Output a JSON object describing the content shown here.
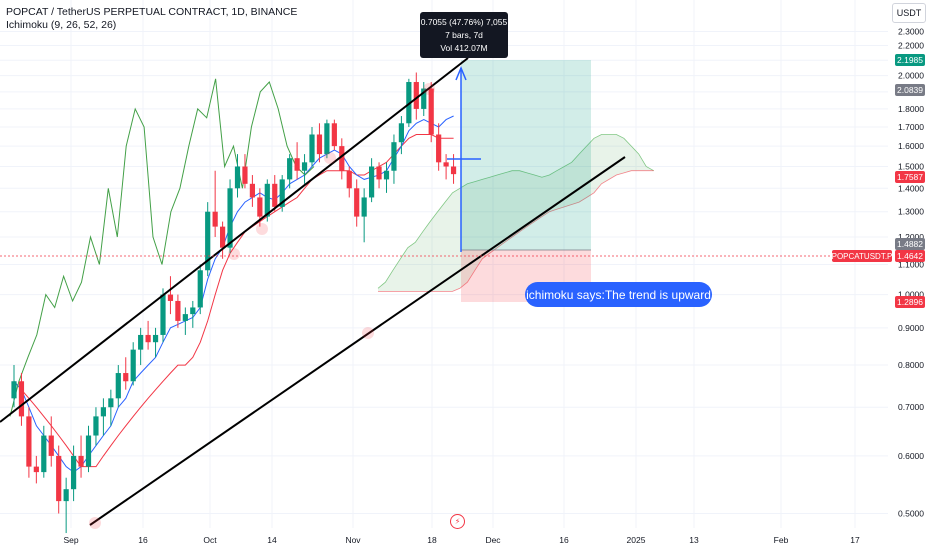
{
  "header": {
    "symbol_line": "POPCAT / TetherUS PERPETUAL CONTRACT, 1D, BINANCE",
    "indicator_line": "Ichimoku (9, 26, 52, 26)"
  },
  "currency": "USDT",
  "measure_box": {
    "line1": "0.7055 (47.76%) 7,055",
    "line2": "7 bars, 7d",
    "line3": "Vol 412.07M"
  },
  "callout": "ichimoku says:The trend is upward",
  "price_tags": [
    {
      "label": "2.1985",
      "color": "#089981"
    },
    {
      "label": "2.0839",
      "color": "#787b86"
    },
    {
      "label": "1.7587",
      "color": "#f23645"
    },
    {
      "label": "1.4882",
      "color": "#787b86"
    },
    {
      "label": "1.4642",
      "color": "#f23645"
    },
    {
      "label": "1.2896",
      "color": "#f23645"
    }
  ],
  "symbol_tag": "POPCATUSDT.P",
  "colors": {
    "up": "#089981",
    "down": "#f23645",
    "tenkan": "#2962ff",
    "kijun": "#f23645",
    "lagging": "#43a047",
    "accent": "#2962ff",
    "grid": "#f0f3fa"
  },
  "chart_data": {
    "type": "candlestick",
    "scale": "log",
    "ylim": [
      0.45,
      2.45
    ],
    "y_ticks": [
      "2.3000",
      "2.2000",
      "2.1000",
      "2.0000",
      "1.9000",
      "1.8000",
      "1.7000",
      "1.6000",
      "1.5000",
      "1.4000",
      "1.3000",
      "1.2000",
      "1.1000",
      "1.0000",
      "0.9000",
      "0.8000",
      "0.7000",
      "0.6000",
      "0.5000"
    ],
    "x_ticks": [
      "Sep",
      "16",
      "Oct",
      "14",
      "Nov",
      "18",
      "Dec",
      "16",
      "2025",
      "13",
      "Feb",
      "17"
    ],
    "candles": [
      [
        0.72,
        0.8,
        0.7,
        0.76
      ],
      [
        0.76,
        0.78,
        0.66,
        0.68
      ],
      [
        0.68,
        0.7,
        0.56,
        0.58
      ],
      [
        0.58,
        0.6,
        0.55,
        0.57
      ],
      [
        0.57,
        0.66,
        0.56,
        0.64
      ],
      [
        0.64,
        0.68,
        0.58,
        0.6
      ],
      [
        0.6,
        0.62,
        0.5,
        0.52
      ],
      [
        0.52,
        0.56,
        0.47,
        0.54
      ],
      [
        0.54,
        0.62,
        0.52,
        0.6
      ],
      [
        0.6,
        0.64,
        0.56,
        0.58
      ],
      [
        0.58,
        0.66,
        0.57,
        0.64
      ],
      [
        0.64,
        0.7,
        0.62,
        0.68
      ],
      [
        0.68,
        0.72,
        0.64,
        0.7
      ],
      [
        0.7,
        0.74,
        0.66,
        0.72
      ],
      [
        0.72,
        0.8,
        0.7,
        0.78
      ],
      [
        0.78,
        0.82,
        0.74,
        0.76
      ],
      [
        0.76,
        0.86,
        0.75,
        0.84
      ],
      [
        0.84,
        0.9,
        0.8,
        0.88
      ],
      [
        0.88,
        0.92,
        0.84,
        0.86
      ],
      [
        0.86,
        0.9,
        0.82,
        0.88
      ],
      [
        0.88,
        1.02,
        0.86,
        1.0
      ],
      [
        1.0,
        1.06,
        0.94,
        0.98
      ],
      [
        0.98,
        1.0,
        0.9,
        0.92
      ],
      [
        0.92,
        0.96,
        0.88,
        0.94
      ],
      [
        0.94,
        0.98,
        0.9,
        0.96
      ],
      [
        0.96,
        1.1,
        0.94,
        1.08
      ],
      [
        1.08,
        1.34,
        1.06,
        1.3
      ],
      [
        1.3,
        1.48,
        1.2,
        1.24
      ],
      [
        1.24,
        1.26,
        1.12,
        1.16
      ],
      [
        1.16,
        1.44,
        1.14,
        1.4
      ],
      [
        1.4,
        1.56,
        1.36,
        1.5
      ],
      [
        1.5,
        1.56,
        1.4,
        1.42
      ],
      [
        1.42,
        1.46,
        1.32,
        1.36
      ],
      [
        1.36,
        1.4,
        1.24,
        1.28
      ],
      [
        1.28,
        1.44,
        1.26,
        1.42
      ],
      [
        1.42,
        1.46,
        1.3,
        1.32
      ],
      [
        1.32,
        1.46,
        1.3,
        1.44
      ],
      [
        1.44,
        1.56,
        1.4,
        1.54
      ],
      [
        1.54,
        1.62,
        1.44,
        1.48
      ],
      [
        1.48,
        1.56,
        1.42,
        1.52
      ],
      [
        1.52,
        1.7,
        1.5,
        1.66
      ],
      [
        1.66,
        1.72,
        1.52,
        1.56
      ],
      [
        1.56,
        1.74,
        1.54,
        1.72
      ],
      [
        1.72,
        1.74,
        1.58,
        1.6
      ],
      [
        1.6,
        1.64,
        1.44,
        1.48
      ],
      [
        1.48,
        1.5,
        1.36,
        1.4
      ],
      [
        1.4,
        1.44,
        1.24,
        1.28
      ],
      [
        1.28,
        1.4,
        1.18,
        1.36
      ],
      [
        1.36,
        1.54,
        1.34,
        1.5
      ],
      [
        1.5,
        1.52,
        1.4,
        1.44
      ],
      [
        1.44,
        1.52,
        1.38,
        1.48
      ],
      [
        1.48,
        1.66,
        1.42,
        1.62
      ],
      [
        1.62,
        1.76,
        1.56,
        1.72
      ],
      [
        1.72,
        1.98,
        1.7,
        1.96
      ],
      [
        1.96,
        2.02,
        1.74,
        1.8
      ],
      [
        1.8,
        1.96,
        1.76,
        1.92
      ],
      [
        1.92,
        1.96,
        1.62,
        1.66
      ],
      [
        1.66,
        1.72,
        1.48,
        1.52
      ],
      [
        1.52,
        1.56,
        1.44,
        1.5
      ],
      [
        1.5,
        1.56,
        1.42,
        1.4642
      ]
    ],
    "tenkan": [
      0.76,
      0.74,
      0.7,
      0.66,
      0.64,
      0.62,
      0.6,
      0.58,
      0.57,
      0.58,
      0.6,
      0.62,
      0.64,
      0.66,
      0.7,
      0.72,
      0.76,
      0.78,
      0.8,
      0.82,
      0.86,
      0.9,
      0.91,
      0.92,
      0.93,
      0.96,
      1.05,
      1.12,
      1.16,
      1.24,
      1.3,
      1.34,
      1.36,
      1.38,
      1.36,
      1.35,
      1.38,
      1.42,
      1.44,
      1.46,
      1.5,
      1.54,
      1.56,
      1.58,
      1.56,
      1.5,
      1.46,
      1.44,
      1.45,
      1.46,
      1.48,
      1.54,
      1.6,
      1.68,
      1.72,
      1.74,
      1.72,
      1.7,
      1.74,
      1.76
    ],
    "kijun": [
      0.76,
      0.74,
      0.72,
      0.7,
      0.68,
      0.66,
      0.64,
      0.62,
      0.6,
      0.58,
      0.58,
      0.58,
      0.6,
      0.62,
      0.64,
      0.66,
      0.68,
      0.7,
      0.72,
      0.74,
      0.76,
      0.78,
      0.8,
      0.8,
      0.82,
      0.86,
      0.92,
      1.0,
      1.08,
      1.14,
      1.18,
      1.22,
      1.24,
      1.26,
      1.28,
      1.3,
      1.32,
      1.34,
      1.36,
      1.4,
      1.44,
      1.46,
      1.48,
      1.48,
      1.48,
      1.48,
      1.46,
      1.46,
      1.48,
      1.5,
      1.52,
      1.56,
      1.6,
      1.64,
      1.66,
      1.66,
      1.66,
      1.64,
      1.64,
      1.64
    ],
    "lagging": [
      0.68,
      0.76,
      0.82,
      0.88,
      1.0,
      0.96,
      1.06,
      0.98,
      1.04,
      1.2,
      1.1,
      1.4,
      1.2,
      1.6,
      1.8,
      1.7,
      1.2,
      1.1,
      1.3,
      1.4,
      1.6,
      1.8,
      1.75,
      1.98,
      1.5,
      1.6,
      1.4,
      1.7,
      1.9,
      1.96,
      1.8,
      1.6,
      1.5,
      1.46,
      1.5
    ],
    "span_a": [
      1.02,
      1.04,
      1.08,
      1.12,
      1.16,
      1.18,
      1.22,
      1.26,
      1.3,
      1.34,
      1.38,
      1.4,
      1.42,
      1.43,
      1.44,
      1.45,
      1.46,
      1.47,
      1.48,
      1.48,
      1.47,
      1.46,
      1.45,
      1.46,
      1.48,
      1.5,
      1.52,
      1.56,
      1.6,
      1.64,
      1.66,
      1.66,
      1.66,
      1.64,
      1.6,
      1.56,
      1.5,
      1.48
    ],
    "span_b": [
      1.01,
      1.01,
      1.01,
      1.01,
      1.01,
      1.01,
      1.01,
      1.01,
      1.01,
      1.01,
      1.01,
      1.02,
      1.04,
      1.08,
      1.12,
      1.14,
      1.16,
      1.18,
      1.2,
      1.22,
      1.24,
      1.26,
      1.28,
      1.3,
      1.31,
      1.32,
      1.33,
      1.34,
      1.36,
      1.38,
      1.42,
      1.44,
      1.46,
      1.47,
      1.48,
      1.48,
      1.48,
      1.48
    ]
  }
}
